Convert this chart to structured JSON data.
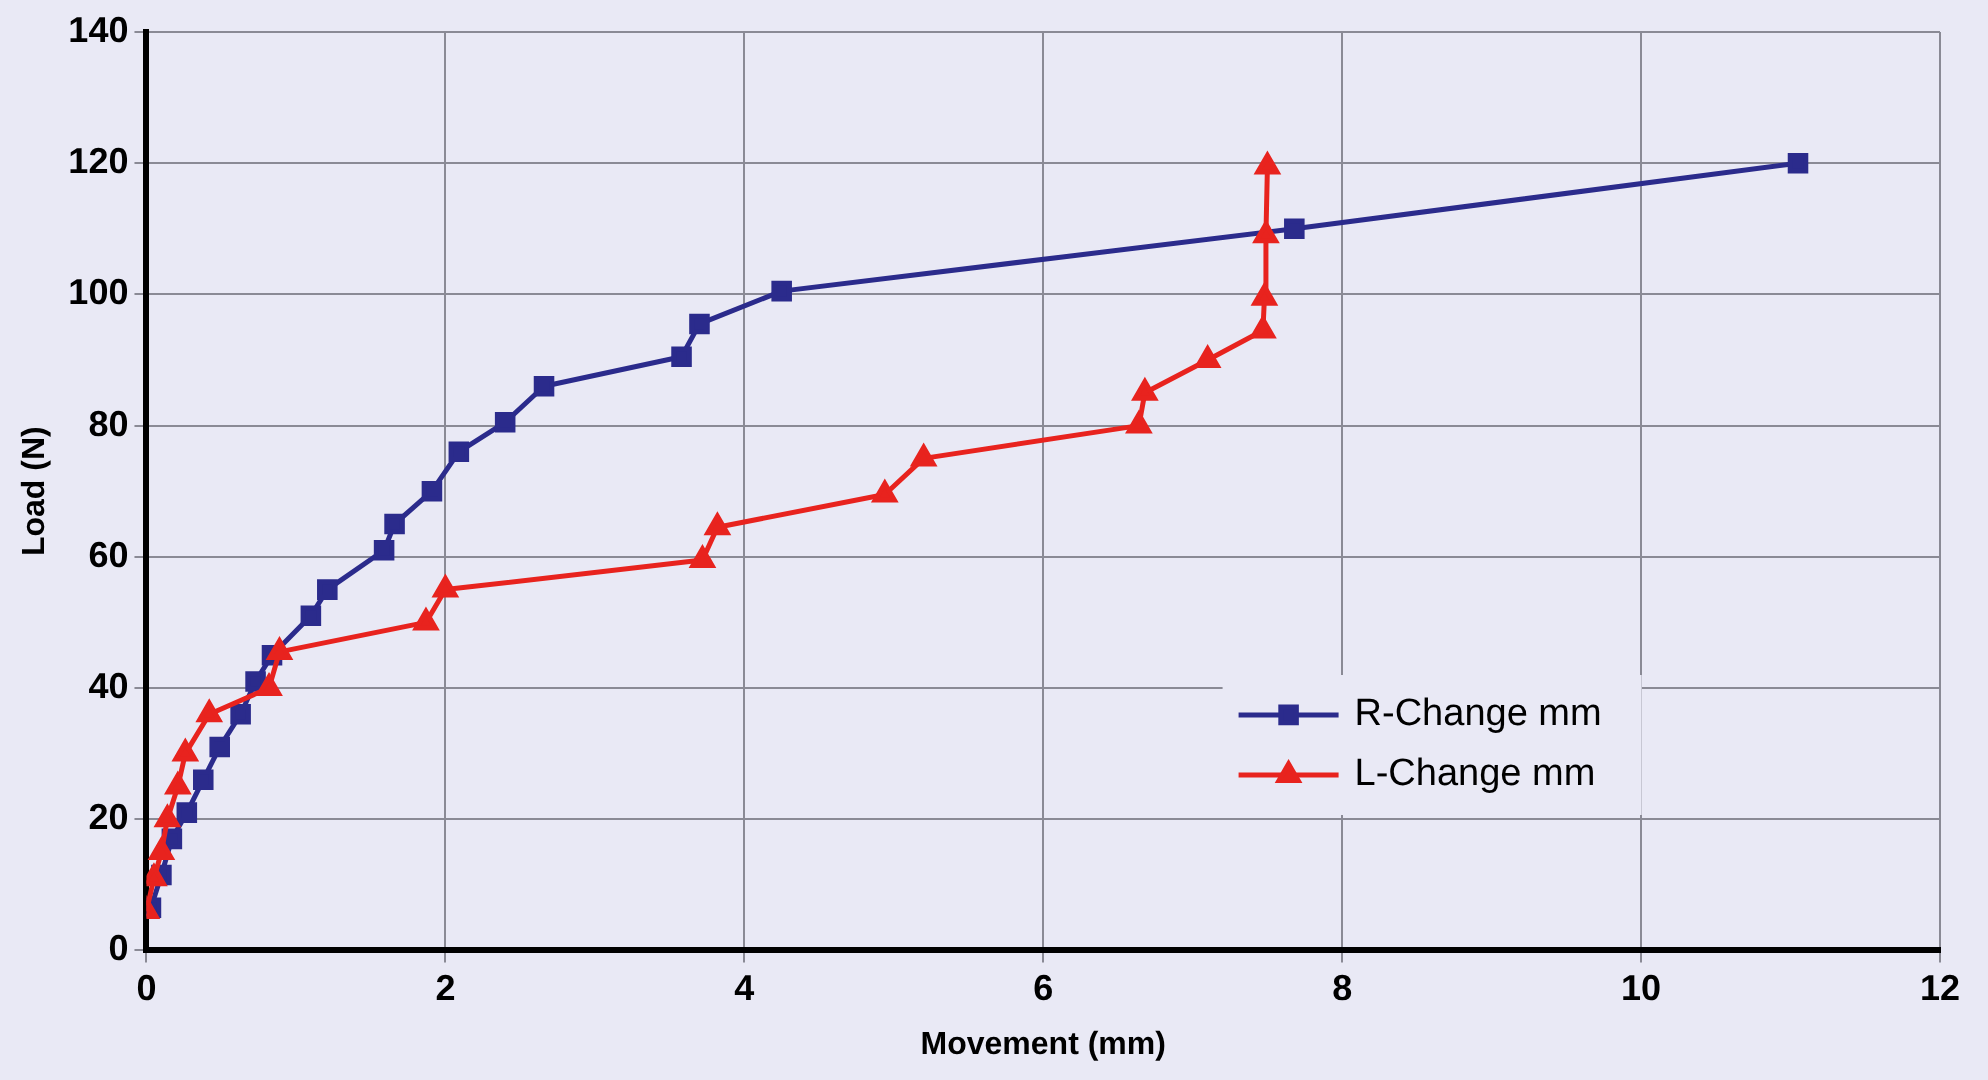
{
  "chart_data": {
    "type": "line",
    "xlabel": "Movement (mm)",
    "ylabel": "Load (N)",
    "xlim": [
      0,
      12
    ],
    "xticks": [
      0,
      2,
      4,
      6,
      8,
      10,
      12
    ],
    "ylim": [
      0,
      140
    ],
    "yticks": [
      0,
      20,
      40,
      60,
      80,
      100,
      120,
      140
    ],
    "grid": true,
    "legend": "bottom right",
    "line_style": "solid",
    "series": [
      {
        "name": "R-Change mm",
        "color": "#2b2b8c",
        "marker": "square",
        "x": [
          0.03,
          0.1,
          0.17,
          0.27,
          0.38,
          0.49,
          0.63,
          0.73,
          0.84,
          1.1,
          1.21,
          1.59,
          1.66,
          1.91,
          2.09,
          2.4,
          2.66,
          3.58,
          3.7,
          4.25,
          7.68,
          11.05
        ],
        "values": [
          6.5,
          11.5,
          17,
          21,
          26,
          31,
          36,
          41,
          45,
          51,
          55,
          61,
          65,
          70,
          76,
          80.5,
          86,
          90.5,
          95.5,
          100.5,
          110,
          120
        ]
      },
      {
        "name": "L-Change mm",
        "color": "#e8231e",
        "marker": "triangle",
        "x": [
          0,
          0.05,
          0.1,
          0.14,
          0.21,
          0.26,
          0.42,
          0.82,
          0.89,
          1.87,
          2.0,
          3.72,
          3.82,
          4.94,
          5.2,
          6.64,
          6.68,
          7.1,
          7.47,
          7.48,
          7.49,
          7.5
        ],
        "values": [
          6,
          11,
          15,
          20,
          25,
          30,
          36,
          40,
          45.5,
          50,
          55,
          59.5,
          64.5,
          69.5,
          75,
          80,
          85,
          90,
          94.5,
          99.5,
          109,
          119.5
        ]
      }
    ]
  }
}
